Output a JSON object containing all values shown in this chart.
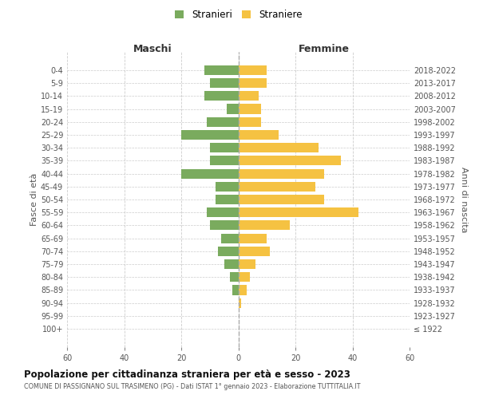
{
  "age_groups_bottom_to_top": [
    "0-4",
    "5-9",
    "10-14",
    "15-19",
    "20-24",
    "25-29",
    "30-34",
    "35-39",
    "40-44",
    "45-49",
    "50-54",
    "55-59",
    "60-64",
    "65-69",
    "70-74",
    "75-79",
    "80-84",
    "85-89",
    "90-94",
    "95-99",
    "100+"
  ],
  "birth_years_bottom_to_top": [
    "2018-2022",
    "2013-2017",
    "2008-2012",
    "2003-2007",
    "1998-2002",
    "1993-1997",
    "1988-1992",
    "1983-1987",
    "1978-1982",
    "1973-1977",
    "1968-1972",
    "1963-1967",
    "1958-1962",
    "1953-1957",
    "1948-1952",
    "1943-1947",
    "1938-1942",
    "1933-1937",
    "1928-1932",
    "1923-1927",
    "≤ 1922"
  ],
  "males_bottom_to_top": [
    12,
    10,
    12,
    4,
    11,
    20,
    10,
    10,
    20,
    8,
    8,
    11,
    10,
    6,
    7,
    5,
    3,
    2,
    0,
    0,
    0
  ],
  "females_bottom_to_top": [
    10,
    10,
    7,
    8,
    8,
    14,
    28,
    36,
    30,
    27,
    30,
    42,
    18,
    10,
    11,
    6,
    4,
    3,
    1,
    0,
    0
  ],
  "male_color": "#7aab5e",
  "female_color": "#f5c242",
  "background_color": "#ffffff",
  "grid_color": "#cccccc",
  "title": "Popolazione per cittadinanza straniera per età e sesso - 2023",
  "subtitle": "COMUNE DI PASSIGNANO SUL TRASIMENO (PG) - Dati ISTAT 1° gennaio 2023 - Elaborazione TUTTITALIA.IT",
  "ylabel_left": "Fasce di età",
  "ylabel_right": "Anni di nascita",
  "header_left": "Maschi",
  "header_right": "Femmine",
  "legend_male": "Stranieri",
  "legend_female": "Straniere",
  "xlim": 60,
  "bar_height": 0.75
}
